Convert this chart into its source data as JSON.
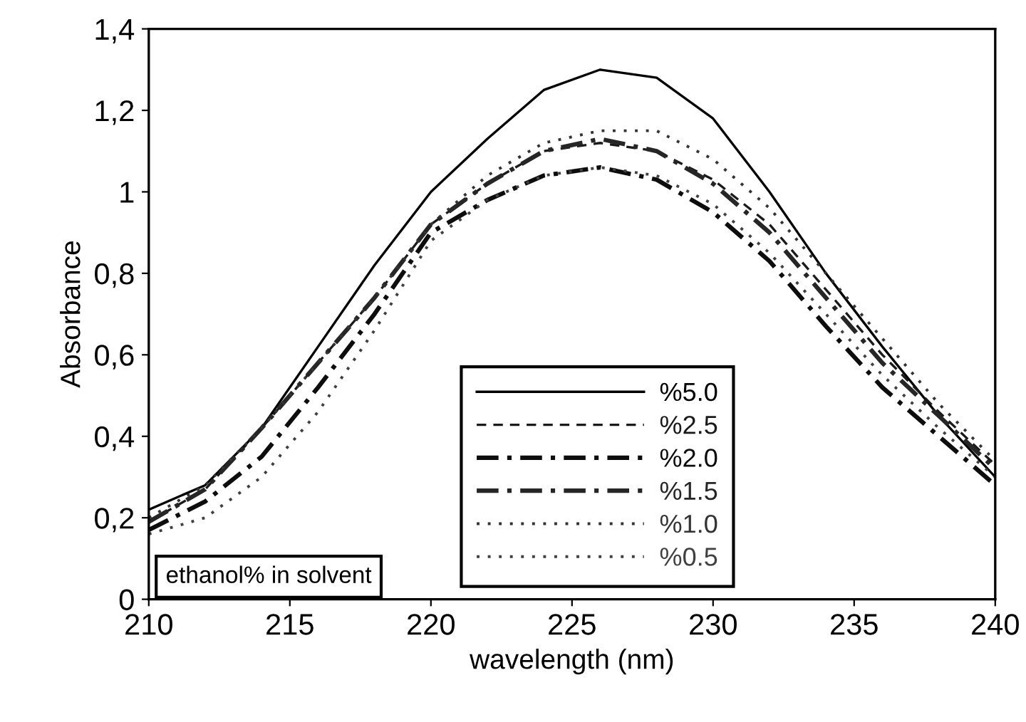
{
  "chart_data": {
    "type": "line",
    "xlabel": "wavelength (nm)",
    "ylabel": "Absorbance",
    "x": [
      210,
      212,
      214,
      216,
      218,
      220,
      222,
      224,
      226,
      228,
      230,
      232,
      234,
      236,
      238,
      240
    ],
    "series": [
      {
        "name": "%5.0",
        "color": "#000000",
        "line_style": "solid",
        "values": [
          0.22,
          0.28,
          0.42,
          0.62,
          0.82,
          1.0,
          1.13,
          1.25,
          1.3,
          1.28,
          1.18,
          1.0,
          0.8,
          0.62,
          0.45,
          0.3
        ]
      },
      {
        "name": "%2.5",
        "color": "#1a1a1a",
        "line_style": "dashed",
        "values": [
          0.19,
          0.27,
          0.42,
          0.58,
          0.74,
          0.92,
          1.02,
          1.1,
          1.12,
          1.1,
          1.03,
          0.92,
          0.76,
          0.6,
          0.46,
          0.33
        ]
      },
      {
        "name": "%2.0",
        "color": "#0d0d0d",
        "line_style": "dashdot",
        "values": [
          0.17,
          0.24,
          0.35,
          0.52,
          0.7,
          0.9,
          0.98,
          1.04,
          1.06,
          1.03,
          0.95,
          0.83,
          0.67,
          0.52,
          0.4,
          0.28
        ]
      },
      {
        "name": "%1.5",
        "color": "#262626",
        "line_style": "dashdot",
        "values": [
          0.19,
          0.27,
          0.42,
          0.58,
          0.74,
          0.92,
          1.02,
          1.1,
          1.13,
          1.1,
          1.02,
          0.9,
          0.74,
          0.58,
          0.45,
          0.32
        ]
      },
      {
        "name": "%1.0",
        "color": "#333333",
        "line_style": "dotted",
        "values": [
          0.2,
          0.28,
          0.42,
          0.58,
          0.74,
          0.92,
          1.04,
          1.12,
          1.15,
          1.15,
          1.08,
          0.96,
          0.8,
          0.64,
          0.48,
          0.34
        ]
      },
      {
        "name": "%0.5",
        "color": "#404040",
        "line_style": "dotted",
        "values": [
          0.16,
          0.2,
          0.3,
          0.46,
          0.66,
          0.88,
          0.98,
          1.04,
          1.06,
          1.04,
          0.97,
          0.85,
          0.7,
          0.55,
          0.42,
          0.3
        ]
      }
    ],
    "xlim": [
      210,
      240
    ],
    "xticks": [
      210,
      215,
      220,
      225,
      230,
      235,
      240
    ],
    "ylim": [
      0,
      1.4
    ],
    "yticks": [
      0,
      {
        "value": 0.2,
        "label": "0,2"
      },
      {
        "value": 0.4,
        "label": "0,4"
      },
      {
        "value": 0.6,
        "label": "0,6"
      },
      {
        "value": 0.8,
        "label": "0,8"
      },
      1,
      {
        "value": 1.2,
        "label": "1,2"
      },
      {
        "value": 1.4,
        "label": "1,4"
      }
    ],
    "annotations": [
      "ethanol% in solvent"
    ],
    "legend": "bottom",
    "grid": false
  }
}
